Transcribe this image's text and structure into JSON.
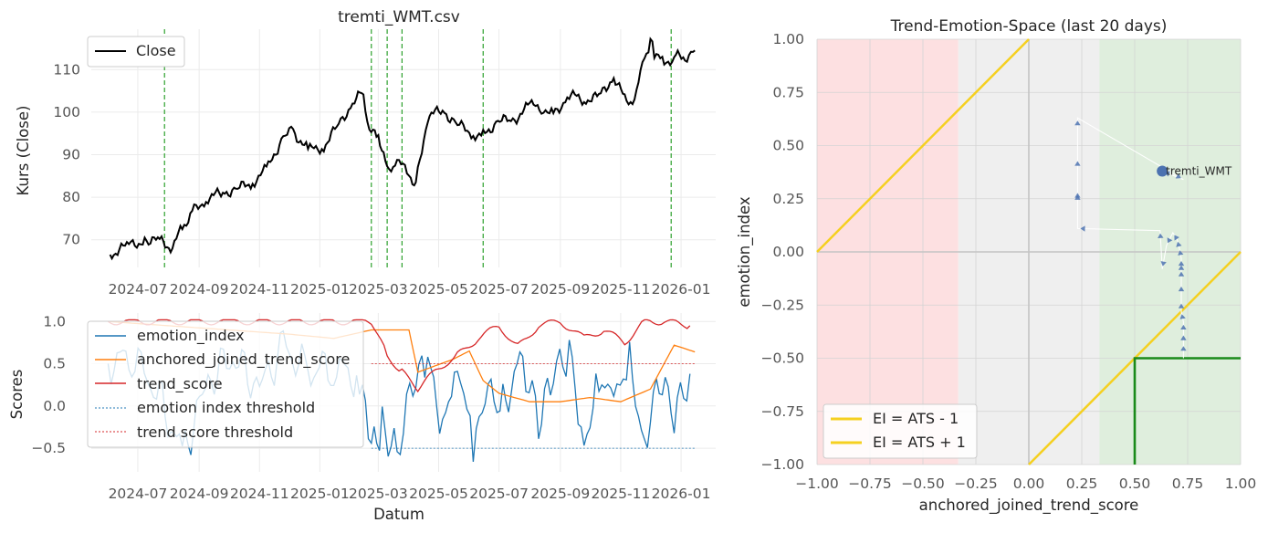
{
  "chart_data": [
    {
      "type": "line",
      "title": "tremti_WMT.csv",
      "xlabel": "",
      "ylabel": "Kurs (Close)",
      "x_ticks": [
        "2024-07",
        "2024-09",
        "2024-11",
        "2025-01",
        "2025-03",
        "2025-05",
        "2025-07",
        "2025-09",
        "2025-11",
        "2026-01"
      ],
      "y_ticks": [
        70,
        80,
        90,
        100,
        110
      ],
      "ylim": [
        63.5,
        119.5
      ],
      "grid": true,
      "legend": "top-left",
      "series": [
        {
          "name": "Close",
          "color": "#000000",
          "x": [
            "2024-06-03",
            "2024-06-20",
            "2024-07-10",
            "2024-07-25",
            "2024-08-05",
            "2024-08-15",
            "2024-08-25",
            "2024-09-10",
            "2024-09-25",
            "2024-10-10",
            "2024-10-25",
            "2024-11-10",
            "2024-11-25",
            "2024-12-05",
            "2024-12-20",
            "2025-01-05",
            "2025-01-20",
            "2025-02-05",
            "2025-02-14",
            "2025-02-20",
            "2025-03-01",
            "2025-03-10",
            "2025-03-20",
            "2025-04-01",
            "2025-04-08",
            "2025-04-20",
            "2025-05-05",
            "2025-05-20",
            "2025-06-05",
            "2025-06-15",
            "2025-06-30",
            "2025-07-15",
            "2025-08-01",
            "2025-08-15",
            "2025-08-25",
            "2025-09-10",
            "2025-09-25",
            "2025-10-10",
            "2025-10-25",
            "2025-11-05",
            "2025-11-15",
            "2025-11-25",
            "2025-12-01",
            "2025-12-05",
            "2025-12-15",
            "2025-12-25",
            "2026-01-05",
            "2026-01-15"
          ],
          "y": [
            66.5,
            68.5,
            70.0,
            69.5,
            68.0,
            73.0,
            76.5,
            80.0,
            81.0,
            82.0,
            83.5,
            87.0,
            94.5,
            95.5,
            91.0,
            92.0,
            97.0,
            103.0,
            104.5,
            95.0,
            95.0,
            86.0,
            88.5,
            85.5,
            83.0,
            99.0,
            100.5,
            97.0,
            95.0,
            94.5,
            98.0,
            98.0,
            101.5,
            101.0,
            99.5,
            104.0,
            103.0,
            103.5,
            108.5,
            103.0,
            102.5,
            113.0,
            116.5,
            114.0,
            111.5,
            113.0,
            113.0,
            114.5
          ]
        }
      ],
      "vlines_dates": [
        "2024-07-28",
        "2025-02-22",
        "2025-03-10",
        "2025-03-25",
        "2025-06-15",
        "2025-12-22"
      ],
      "vline_color": "#2ca02c"
    },
    {
      "type": "line",
      "title": "",
      "xlabel": "Datum",
      "ylabel": "Scores",
      "x_ticks": [
        "2024-07",
        "2024-09",
        "2024-11",
        "2025-01",
        "2025-03",
        "2025-05",
        "2025-07",
        "2025-09",
        "2025-11",
        "2026-01"
      ],
      "y_ticks": [
        -0.5,
        0.0,
        0.5,
        1.0
      ],
      "y_tick_labels": [
        "−0.5",
        "0.0",
        "0.5",
        "1.0"
      ],
      "ylim": [
        -0.78,
        1.1
      ],
      "grid": true,
      "legend": "top-left",
      "series": [
        {
          "name": "emotion_index",
          "color": "#1f77b4",
          "x": [
            "2024-06-01",
            "2024-06-25",
            "2024-07-20",
            "2024-08-15",
            "2024-09-10",
            "2024-10-05",
            "2024-11-01",
            "2024-11-25",
            "2024-12-20",
            "2025-01-15",
            "2025-02-10",
            "2025-02-22",
            "2025-03-05",
            "2025-03-20",
            "2025-04-05",
            "2025-04-20",
            "2025-05-05",
            "2025-05-20",
            "2025-06-05",
            "2025-06-20",
            "2025-07-05",
            "2025-07-25",
            "2025-08-10",
            "2025-08-25",
            "2025-09-10",
            "2025-09-25",
            "2025-10-10",
            "2025-10-25",
            "2025-11-10",
            "2025-11-25",
            "2025-12-10",
            "2025-12-25",
            "2026-01-10"
          ],
          "y": [
            0.5,
            0.6,
            0.2,
            -0.6,
            0.3,
            0.6,
            0.2,
            0.7,
            0.4,
            0.5,
            0.3,
            -0.6,
            -0.2,
            -0.5,
            0.2,
            0.5,
            -0.2,
            0.6,
            -0.5,
            0.1,
            0.0,
            0.6,
            -0.2,
            0.3,
            0.7,
            -0.4,
            0.3,
            0.0,
            0.5,
            -0.4,
            0.4,
            -0.2,
            0.38
          ]
        },
        {
          "name": "anchored_joined_trend_score",
          "color": "#ff7f0e",
          "x": [
            "2024-06-01",
            "2024-12-01",
            "2025-01-15",
            "2025-02-22",
            "2025-04-01",
            "2025-04-10",
            "2025-05-15",
            "2025-06-01",
            "2025-06-15",
            "2025-07-01",
            "2025-08-01",
            "2025-09-01",
            "2025-10-01",
            "2025-11-01",
            "2025-12-01",
            "2025-12-25",
            "2026-01-15"
          ],
          "y": [
            1.0,
            0.85,
            0.8,
            0.9,
            0.9,
            0.4,
            0.55,
            0.65,
            0.3,
            0.15,
            0.05,
            0.05,
            0.1,
            0.05,
            0.2,
            0.72,
            0.64
          ]
        },
        {
          "name": "trend_score",
          "color": "#d62728",
          "x": [
            "2024-06-01",
            "2024-10-01",
            "2025-02-22",
            "2025-03-10",
            "2025-03-25",
            "2025-04-10",
            "2025-05-01",
            "2025-05-20",
            "2025-06-10",
            "2025-07-01",
            "2025-07-20",
            "2025-08-10",
            "2025-09-01",
            "2025-09-25",
            "2025-10-15",
            "2025-11-05",
            "2025-11-25",
            "2025-12-15",
            "2026-01-10"
          ],
          "y": [
            1.0,
            1.0,
            1.0,
            0.6,
            0.4,
            0.2,
            0.45,
            0.6,
            0.8,
            0.95,
            0.7,
            0.95,
            1.0,
            0.8,
            0.9,
            0.75,
            1.0,
            1.0,
            0.95
          ]
        },
        {
          "name": "emotion index threshold",
          "color": "#1f77b4",
          "dashed": true,
          "x": [
            "2025-02-22",
            "2026-01-15"
          ],
          "y": [
            -0.5,
            -0.5
          ]
        },
        {
          "name": "trend score threshold",
          "color": "#d62728",
          "dashed": true,
          "x": [
            "2025-02-22",
            "2026-01-15"
          ],
          "y": [
            0.5,
            0.5
          ]
        }
      ]
    },
    {
      "type": "scatter",
      "title": "Trend-Emotion-Space (last 20 days)",
      "xlabel": "anchored_joined_trend_score",
      "ylabel": "emotion_index",
      "xlim": [
        -1.0,
        1.0
      ],
      "ylim": [
        -1.0,
        1.0
      ],
      "x_ticks": [
        -1.0,
        -0.75,
        -0.5,
        -0.25,
        0.0,
        0.25,
        0.5,
        0.75,
        1.0
      ],
      "x_tick_labels": [
        "−1.00",
        "−0.75",
        "−0.50",
        "−0.25",
        "0.00",
        "0.25",
        "0.50",
        "0.75",
        "1.00"
      ],
      "y_ticks": [
        1.0,
        0.75,
        0.5,
        0.25,
        0.0,
        -0.25,
        -0.5,
        -0.75,
        -1.0
      ],
      "y_tick_labels": [
        "1.00",
        "0.75",
        "0.50",
        "0.25",
        "0.00",
        "−0.25",
        "−0.50",
        "−0.75",
        "−1.00"
      ],
      "grid": true,
      "legend": "bottom-left",
      "regions": {
        "red_zone_x": [
          -1.0,
          -0.333
        ],
        "grey_zone_x": [
          -0.333,
          0.333
        ],
        "green_zone_x": [
          0.333,
          1.0
        ],
        "red_color": "#fde0e1",
        "grey_color": "#efefef",
        "green_color": "#dfeedd"
      },
      "lines": [
        {
          "name": "EI = ATS - 1",
          "color": "#f5d020"
        },
        {
          "name": "EI = ATS + 1",
          "color": "#f5d020"
        }
      ],
      "green_box": {
        "x_from": 0.5,
        "y_to": -0.5,
        "color": "#1a8a1a"
      },
      "trajectory": {
        "x": [
          0.73,
          0.73,
          0.73,
          0.73,
          0.72,
          0.72,
          0.72,
          0.72,
          0.72,
          0.72,
          0.71,
          0.7,
          0.68,
          0.65,
          0.63,
          0.62,
          0.23,
          0.23,
          0.23,
          0.23,
          0.23,
          0.73,
          0.63
        ],
        "y": [
          -0.5,
          -0.43,
          -0.38,
          -0.33,
          -0.28,
          -0.23,
          -0.15,
          -0.08,
          -0.05,
          -0.03,
          0.02,
          0.06,
          0.09,
          0.03,
          -0.08,
          0.1,
          0.11,
          0.28,
          0.29,
          0.44,
          0.63,
          0.34,
          0.38
        ]
      },
      "points": [
        {
          "label": "tremti_WMT",
          "x": 0.63,
          "y": 0.38,
          "color": "#4c72b0"
        }
      ]
    }
  ]
}
